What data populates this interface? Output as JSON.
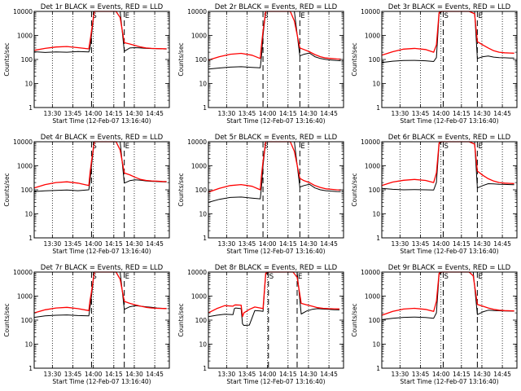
{
  "common": {
    "x_label": "Start Time (12-Feb-07 13:16:40)",
    "y_label": "Counts/sec",
    "y_ticks": [
      "10000",
      "1000",
      "100",
      "10",
      "1"
    ],
    "y_tick_values": [
      10000,
      1000,
      100,
      10,
      1
    ],
    "x_ticks": [
      "13:30",
      "13:45",
      "14:00",
      "14:15",
      "14:30",
      "14:45"
    ],
    "x_tick_minutes": [
      13.33,
      28.33,
      43.33,
      58.33,
      73.33,
      88.33
    ],
    "start_marker": "S",
    "end_marker": "E",
    "colors": {
      "events": "#000000",
      "lld": "#ff0000"
    }
  },
  "chart_data": [
    {
      "type": "line",
      "title": "Det 1r BLACK = Events, RED = LLD",
      "xlabel": "Start Time (12-Feb-07 13:16:40)",
      "ylabel": "Counts/sec",
      "x_unit": "minutes after 13:16:40",
      "xlim": [
        0,
        99
      ],
      "ylim": [
        1,
        10000
      ],
      "y_scale": "log",
      "start_line": 42,
      "end_line": 66,
      "x": [
        0,
        8,
        16,
        24,
        32,
        40,
        41,
        42,
        44,
        48,
        52,
        56,
        60,
        63,
        66,
        70,
        74,
        78,
        82,
        86,
        90,
        94,
        97
      ],
      "series": [
        {
          "name": "BLACK = Events",
          "values": [
            210,
            195,
            205,
            200,
            215,
            205,
            300,
            1000,
            10000,
            10000,
            10000,
            10000,
            10000,
            10000,
            220,
            300,
            310,
            300,
            290,
            285,
            280,
            275,
            272
          ]
        },
        {
          "name": "RED = LLD",
          "values": [
            240,
            290,
            330,
            345,
            310,
            275,
            600,
            1500,
            10000,
            10000,
            10000,
            10000,
            10000,
            5500,
            500,
            440,
            380,
            330,
            300,
            290,
            285,
            280,
            278
          ]
        }
      ]
    },
    {
      "type": "line",
      "title": "Det 2r BLACK = Events, RED = LLD",
      "xlabel": "Start Time (12-Feb-07 13:16:40)",
      "ylabel": "Counts/sec",
      "x_unit": "minutes after 13:16:40",
      "xlim": [
        0,
        99
      ],
      "ylim": [
        1,
        10000
      ],
      "y_scale": "log",
      "start_line": 40,
      "end_line": 67,
      "x": [
        0,
        8,
        16,
        24,
        32,
        38,
        39,
        40,
        42,
        48,
        54,
        58,
        60,
        63,
        67,
        70,
        74,
        78,
        82,
        86,
        90,
        94,
        97
      ],
      "series": [
        {
          "name": "BLACK = Events",
          "values": [
            40,
            44,
            48,
            50,
            47,
            45,
            150,
            1000,
            10000,
            10000,
            10000,
            10000,
            10000,
            10000,
            140,
            165,
            185,
            130,
            110,
            100,
            95,
            90,
            88
          ]
        },
        {
          "name": "RED = LLD",
          "values": [
            95,
            130,
            165,
            180,
            150,
            110,
            450,
            1500,
            10000,
            10000,
            10000,
            10000,
            10000,
            4000,
            300,
            260,
            210,
            160,
            130,
            115,
            110,
            105,
            102
          ]
        }
      ]
    },
    {
      "type": "line",
      "title": "Det 3r BLACK = Events, RED = LLD",
      "xlabel": "Start Time (12-Feb-07 13:16:40)",
      "ylabel": "Counts/sec",
      "x_unit": "minutes after 13:16:40",
      "xlim": [
        0,
        99
      ],
      "ylim": [
        1,
        10000
      ],
      "y_scale": "log",
      "start_line": 45,
      "end_line": 70,
      "x": [
        0,
        8,
        16,
        24,
        32,
        38,
        40,
        42,
        44,
        48,
        52,
        56,
        60,
        64,
        68,
        70,
        74,
        78,
        82,
        86,
        90,
        94,
        97
      ],
      "series": [
        {
          "name": "BLACK = Events",
          "values": [
            75,
            85,
            90,
            92,
            88,
            82,
            120,
            8000,
            10000,
            10000,
            10000,
            10000,
            10000,
            10000,
            10000,
            110,
            130,
            140,
            125,
            120,
            118,
            115,
            114
          ]
        },
        {
          "name": "RED = LLD",
          "values": [
            150,
            210,
            270,
            290,
            260,
            200,
            400,
            9000,
            10000,
            10000,
            10000,
            10000,
            10000,
            10000,
            8000,
            550,
            400,
            300,
            230,
            200,
            190,
            185,
            182
          ]
        }
      ]
    },
    {
      "type": "line",
      "title": "Det 4r BLACK = Events, RED = LLD",
      "xlabel": "Start Time (12-Feb-07 13:16:40)",
      "ylabel": "Counts/sec",
      "x_unit": "minutes after 13:16:40",
      "xlim": [
        0,
        99
      ],
      "ylim": [
        1,
        10000
      ],
      "y_scale": "log",
      "start_line": 42,
      "end_line": 66,
      "x": [
        0,
        8,
        16,
        24,
        32,
        40,
        41,
        42,
        44,
        48,
        52,
        56,
        60,
        63,
        66,
        70,
        74,
        78,
        82,
        86,
        90,
        94,
        97
      ],
      "series": [
        {
          "name": "BLACK = Events",
          "values": [
            85,
            90,
            95,
            98,
            92,
            100,
            250,
            1000,
            10000,
            10000,
            10000,
            10000,
            10000,
            10000,
            190,
            240,
            260,
            250,
            235,
            225,
            220,
            215,
            212
          ]
        },
        {
          "name": "RED = LLD",
          "values": [
            120,
            165,
            200,
            215,
            190,
            150,
            550,
            1500,
            10000,
            10000,
            10000,
            10000,
            10000,
            4500,
            500,
            420,
            330,
            270,
            245,
            235,
            228,
            222,
            220
          ]
        }
      ]
    },
    {
      "type": "line",
      "title": "Det 5r BLACK = Events, RED = LLD",
      "xlabel": "Start Time (12-Feb-07 13:16:40)",
      "ylabel": "Counts/sec",
      "x_unit": "minutes after 13:16:40",
      "xlim": [
        0,
        99
      ],
      "ylim": [
        1,
        10000
      ],
      "y_scale": "log",
      "start_line": 40,
      "end_line": 67,
      "x": [
        0,
        8,
        16,
        24,
        32,
        38,
        39,
        40,
        42,
        48,
        54,
        58,
        60,
        63,
        67,
        70,
        74,
        78,
        82,
        86,
        90,
        94,
        97
      ],
      "series": [
        {
          "name": "BLACK = Events",
          "values": [
            30,
            40,
            48,
            50,
            45,
            42,
            150,
            1000,
            10000,
            10000,
            10000,
            10000,
            10000,
            10000,
            130,
            150,
            170,
            120,
            100,
            92,
            88,
            85,
            84
          ]
        },
        {
          "name": "RED = LLD",
          "values": [
            80,
            115,
            150,
            165,
            140,
            100,
            450,
            1500,
            10000,
            10000,
            10000,
            10000,
            10000,
            4000,
            300,
            240,
            200,
            150,
            125,
            110,
            105,
            100,
            98
          ]
        }
      ]
    },
    {
      "type": "line",
      "title": "Det 6r BLACK = Events, RED = LLD",
      "xlabel": "Start Time (12-Feb-07 13:16:40)",
      "ylabel": "Counts/sec",
      "x_unit": "minutes after 13:16:40",
      "xlim": [
        0,
        99
      ],
      "ylim": [
        1,
        10000
      ],
      "y_scale": "log",
      "start_line": 45,
      "end_line": 70,
      "x": [
        0,
        8,
        16,
        24,
        32,
        38,
        40,
        42,
        44,
        48,
        52,
        56,
        60,
        64,
        68,
        70,
        74,
        78,
        82,
        86,
        90,
        94,
        97
      ],
      "series": [
        {
          "name": "BLACK = Events",
          "values": [
            115,
            105,
            100,
            102,
            100,
            98,
            200,
            8000,
            10000,
            10000,
            10000,
            10000,
            10000,
            10000,
            10000,
            120,
            150,
            180,
            175,
            170,
            168,
            165,
            164
          ]
        },
        {
          "name": "RED = LLD",
          "values": [
            150,
            210,
            250,
            270,
            245,
            200,
            500,
            9000,
            10000,
            10000,
            10000,
            10000,
            10000,
            10000,
            8000,
            600,
            400,
            290,
            230,
            200,
            190,
            185,
            182
          ]
        }
      ]
    },
    {
      "type": "line",
      "title": "Det 7r BLACK = Events, RED = LLD",
      "xlabel": "Start Time (12-Feb-07 13:16:40)",
      "ylabel": "Counts/sec",
      "x_unit": "minutes after 13:16:40",
      "xlim": [
        0,
        99
      ],
      "ylim": [
        1,
        10000
      ],
      "y_scale": "log",
      "start_line": 42,
      "end_line": 66,
      "x": [
        0,
        8,
        16,
        24,
        32,
        40,
        41,
        42,
        44,
        48,
        52,
        56,
        60,
        63,
        66,
        70,
        74,
        78,
        82,
        86,
        90,
        94,
        97
      ],
      "series": [
        {
          "name": "BLACK = Events",
          "values": [
            130,
            150,
            160,
            165,
            155,
            150,
            350,
            1000,
            10000,
            10000,
            10000,
            10000,
            10000,
            10000,
            280,
            360,
            400,
            380,
            360,
            340,
            320,
            310,
            305
          ]
        },
        {
          "name": "RED = LLD",
          "values": [
            200,
            270,
            320,
            340,
            300,
            250,
            700,
            1500,
            10000,
            10000,
            10000,
            10000,
            10000,
            5000,
            600,
            500,
            430,
            380,
            340,
            320,
            310,
            305,
            302
          ]
        }
      ]
    },
    {
      "type": "line",
      "title": "Det 8r BLACK = Events, RED = LLD",
      "xlabel": "Start Time (12-Feb-07 13:16:40)",
      "ylabel": "Counts/sec",
      "x_unit": "minutes after 13:16:40",
      "xlim": [
        0,
        99
      ],
      "ylim": [
        1,
        10000
      ],
      "y_scale": "log",
      "start_line": 44,
      "end_line": 65,
      "x": [
        0,
        6,
        12,
        18,
        19,
        20,
        24,
        25,
        26,
        30,
        34,
        38,
        40,
        42,
        44,
        48,
        52,
        56,
        60,
        62,
        65,
        68,
        72,
        76,
        80,
        84,
        88,
        92,
        96
      ],
      "series": [
        {
          "name": "BLACK = Events",
          "values": [
            140,
            160,
            175,
            170,
            300,
            320,
            300,
            70,
            60,
            62,
            250,
            240,
            230,
            8000,
            10000,
            10000,
            10000,
            10000,
            10000,
            10000,
            10000,
            180,
            240,
            280,
            300,
            290,
            280,
            270,
            268
          ]
        },
        {
          "name": "RED = LLD",
          "values": [
            200,
            300,
            400,
            380,
            420,
            430,
            420,
            140,
            200,
            280,
            350,
            320,
            300,
            9000,
            10000,
            10000,
            10000,
            10000,
            10000,
            10000,
            6000,
            500,
            430,
            380,
            330,
            310,
            300,
            295,
            292
          ]
        }
      ]
    },
    {
      "type": "line",
      "title": "Det 9r BLACK = Events, RED = LLD",
      "xlabel": "Start Time (12-Feb-07 13:16:40)",
      "ylabel": "Counts/sec",
      "x_unit": "minutes after 13:16:40",
      "xlim": [
        0,
        99
      ],
      "ylim": [
        1,
        10000
      ],
      "y_scale": "log",
      "start_line": 45,
      "end_line": 70,
      "x": [
        0,
        8,
        16,
        24,
        32,
        38,
        40,
        42,
        44,
        48,
        52,
        56,
        60,
        64,
        67,
        70,
        74,
        78,
        82,
        86,
        90,
        94,
        97
      ],
      "series": [
        {
          "name": "BLACK = Events",
          "values": [
            105,
            120,
            130,
            135,
            128,
            120,
            200,
            8000,
            10000,
            10000,
            10000,
            10000,
            10000,
            10000,
            10000,
            170,
            220,
            260,
            250,
            245,
            240,
            238,
            236
          ]
        },
        {
          "name": "RED = LLD",
          "values": [
            160,
            230,
            290,
            310,
            280,
            230,
            600,
            9000,
            10000,
            10000,
            10000,
            10000,
            10000,
            10000,
            7000,
            450,
            380,
            320,
            280,
            260,
            250,
            245,
            242
          ]
        }
      ]
    }
  ]
}
